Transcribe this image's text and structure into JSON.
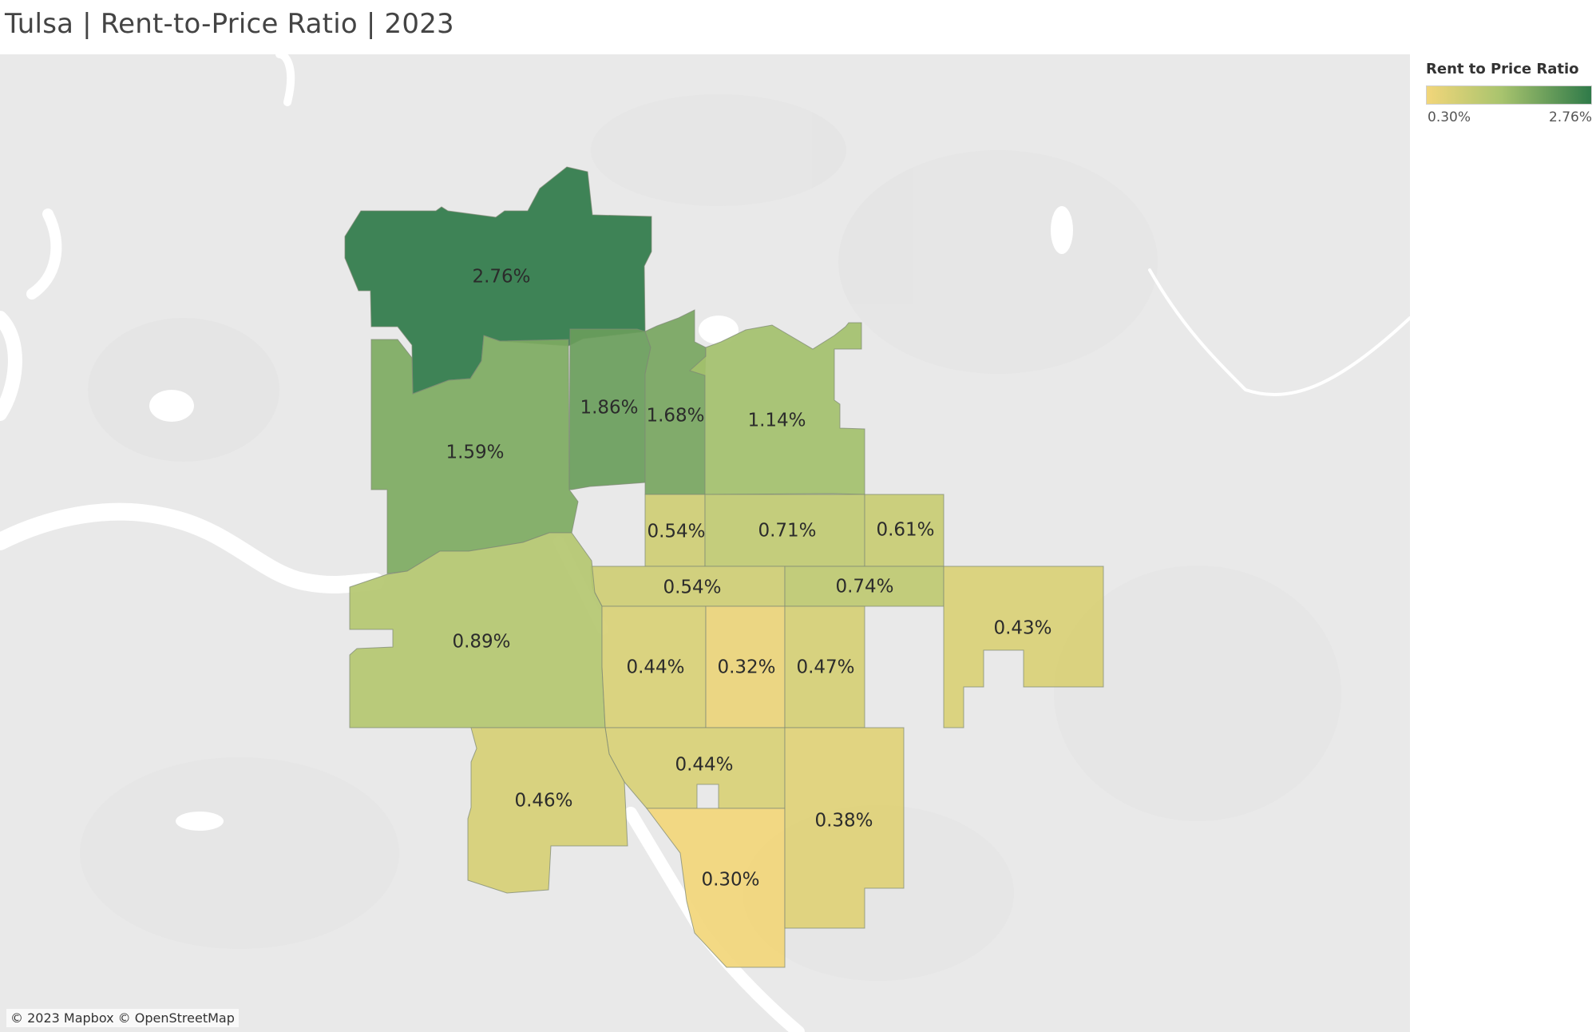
{
  "title": "Tulsa | Rent-to-Price Ratio | 2023",
  "legend": {
    "title": "Rent to Price Ratio",
    "min_label": "0.30%",
    "max_label": "2.76%",
    "min_value": 0.3,
    "max_value": 2.76,
    "color_low": "#f2d67a",
    "color_mid": "#a9c46e",
    "color_high": "#2f7a49"
  },
  "attribution": "© 2023 Mapbox © OpenStreetMap",
  "regions": [
    {
      "id": "nw-north",
      "label": "2.76%",
      "value": 2.76
    },
    {
      "id": "nw-south",
      "label": "1.59%",
      "value": 1.59
    },
    {
      "id": "north-central",
      "label": "1.86%",
      "value": 1.86
    },
    {
      "id": "north-airport-west",
      "label": "1.68%",
      "value": 1.68
    },
    {
      "id": "north-east",
      "label": "1.14%",
      "value": 1.14
    },
    {
      "id": "central-north-a",
      "label": "0.54%",
      "value": 0.54
    },
    {
      "id": "central-north-b",
      "label": "0.71%",
      "value": 0.71
    },
    {
      "id": "central-north-c",
      "label": "0.61%",
      "value": 0.61
    },
    {
      "id": "central-a",
      "label": "0.54%",
      "value": 0.54
    },
    {
      "id": "central-b",
      "label": "0.74%",
      "value": 0.74
    },
    {
      "id": "west",
      "label": "0.89%",
      "value": 0.89
    },
    {
      "id": "midtown-west",
      "label": "0.44%",
      "value": 0.44
    },
    {
      "id": "midtown",
      "label": "0.32%",
      "value": 0.32
    },
    {
      "id": "midtown-east",
      "label": "0.47%",
      "value": 0.47
    },
    {
      "id": "east",
      "label": "0.43%",
      "value": 0.43
    },
    {
      "id": "south-central",
      "label": "0.44%",
      "value": 0.44
    },
    {
      "id": "southwest",
      "label": "0.46%",
      "value": 0.46
    },
    {
      "id": "south",
      "label": "0.30%",
      "value": 0.3
    },
    {
      "id": "southeast",
      "label": "0.38%",
      "value": 0.38
    }
  ]
}
